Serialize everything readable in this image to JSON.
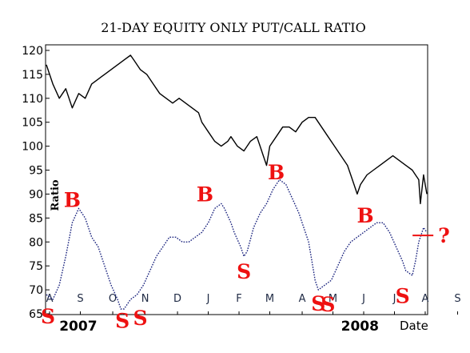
{
  "chart_data": {
    "type": "line",
    "title": "21-DAY EQUITY ONLY PUT/CALL RATIO",
    "ylabel": "Ratio",
    "xlabel": "Date",
    "ylim": [
      65,
      121
    ],
    "xlim": [
      0,
      235
    ],
    "yticks": [
      "65",
      "70",
      "75",
      "80",
      "85",
      "90",
      "95",
      "100",
      "105",
      "110",
      "115",
      "120"
    ],
    "ytick_values": [
      65,
      70,
      75,
      80,
      85,
      90,
      95,
      100,
      105,
      110,
      115,
      120
    ],
    "month_labels": [
      {
        "label": "A",
        "t": 2
      },
      {
        "label": "S",
        "t": 21
      },
      {
        "label": "O",
        "t": 41
      },
      {
        "label": "N",
        "t": 61
      },
      {
        "label": "D",
        "t": 81
      },
      {
        "label": "J",
        "t": 100
      },
      {
        "label": "F",
        "t": 119
      },
      {
        "label": "M",
        "t": 138
      },
      {
        "label": "A",
        "t": 158
      },
      {
        "label": "M",
        "t": 177
      },
      {
        "label": "J",
        "t": 196
      },
      {
        "label": "J",
        "t": 215
      },
      {
        "label": "A",
        "t": 234
      },
      {
        "label": "S",
        "t": 254
      }
    ],
    "year_labels": [
      {
        "label": "2007",
        "t": 8
      },
      {
        "label": "2008",
        "t": 182
      }
    ],
    "series": [
      {
        "color": "#000000",
        "style": "solid",
        "points": [
          [
            0,
            117
          ],
          [
            4,
            113
          ],
          [
            8,
            110
          ],
          [
            12,
            112
          ],
          [
            16,
            108
          ],
          [
            20,
            111
          ],
          [
            24,
            110
          ],
          [
            28,
            113
          ],
          [
            32,
            114
          ],
          [
            36,
            115
          ],
          [
            40,
            116
          ],
          [
            44,
            117
          ],
          [
            48,
            118
          ],
          [
            52,
            119
          ],
          [
            54,
            118
          ],
          [
            58,
            116
          ],
          [
            62,
            115
          ],
          [
            66,
            113
          ],
          [
            70,
            111
          ],
          [
            74,
            110
          ],
          [
            78,
            109
          ],
          [
            82,
            110
          ],
          [
            86,
            109
          ],
          [
            90,
            108
          ],
          [
            94,
            107
          ],
          [
            96,
            105
          ],
          [
            100,
            103
          ],
          [
            104,
            101
          ],
          [
            108,
            100
          ],
          [
            112,
            101
          ],
          [
            114,
            102
          ],
          [
            118,
            100
          ],
          [
            122,
            99
          ],
          [
            126,
            101
          ],
          [
            130,
            102
          ],
          [
            132,
            100
          ],
          [
            134,
            98
          ],
          [
            136,
            96
          ],
          [
            138,
            100
          ],
          [
            142,
            102
          ],
          [
            146,
            104
          ],
          [
            150,
            104
          ],
          [
            154,
            103
          ],
          [
            158,
            105
          ],
          [
            162,
            106
          ],
          [
            166,
            106
          ],
          [
            170,
            104
          ],
          [
            174,
            102
          ],
          [
            178,
            100
          ],
          [
            182,
            98
          ],
          [
            186,
            96
          ],
          [
            188,
            94
          ],
          [
            190,
            92
          ],
          [
            192,
            90
          ],
          [
            194,
            92
          ],
          [
            198,
            94
          ],
          [
            202,
            95
          ],
          [
            206,
            96
          ],
          [
            210,
            97
          ],
          [
            214,
            98
          ],
          [
            218,
            97
          ],
          [
            222,
            96
          ],
          [
            226,
            95
          ],
          [
            228,
            94
          ],
          [
            230,
            93
          ],
          [
            231,
            88
          ],
          [
            232,
            91
          ],
          [
            233,
            94
          ],
          [
            235,
            90
          ]
        ]
      },
      {
        "color": "#1a237e",
        "style": "dotted",
        "points": [
          [
            0,
            69
          ],
          [
            4,
            68
          ],
          [
            8,
            71
          ],
          [
            12,
            77
          ],
          [
            16,
            84
          ],
          [
            20,
            87
          ],
          [
            24,
            85
          ],
          [
            28,
            81
          ],
          [
            32,
            79
          ],
          [
            36,
            75
          ],
          [
            40,
            71
          ],
          [
            44,
            68
          ],
          [
            46,
            66
          ],
          [
            48,
            66
          ],
          [
            50,
            67
          ],
          [
            52,
            68
          ],
          [
            56,
            69
          ],
          [
            60,
            71
          ],
          [
            64,
            74
          ],
          [
            68,
            77
          ],
          [
            72,
            79
          ],
          [
            76,
            81
          ],
          [
            80,
            81
          ],
          [
            84,
            80
          ],
          [
            88,
            80
          ],
          [
            92,
            81
          ],
          [
            96,
            82
          ],
          [
            100,
            84
          ],
          [
            104,
            87
          ],
          [
            108,
            88
          ],
          [
            110,
            87
          ],
          [
            114,
            84
          ],
          [
            116,
            82
          ],
          [
            120,
            79
          ],
          [
            122,
            77
          ],
          [
            124,
            78
          ],
          [
            128,
            83
          ],
          [
            132,
            86
          ],
          [
            136,
            88
          ],
          [
            140,
            91
          ],
          [
            144,
            93
          ],
          [
            148,
            92
          ],
          [
            152,
            89
          ],
          [
            156,
            86
          ],
          [
            158,
            84
          ],
          [
            162,
            80
          ],
          [
            164,
            76
          ],
          [
            166,
            72
          ],
          [
            168,
            70
          ],
          [
            172,
            71
          ],
          [
            176,
            72
          ],
          [
            180,
            75
          ],
          [
            184,
            78
          ],
          [
            188,
            80
          ],
          [
            192,
            81
          ],
          [
            196,
            82
          ],
          [
            200,
            83
          ],
          [
            204,
            84
          ],
          [
            208,
            84
          ],
          [
            212,
            82
          ],
          [
            216,
            79
          ],
          [
            220,
            76
          ],
          [
            222,
            74
          ],
          [
            226,
            73
          ],
          [
            228,
            76
          ],
          [
            230,
            80
          ],
          [
            233,
            83
          ],
          [
            235,
            82
          ]
        ]
      }
    ],
    "signals": [
      {
        "label": "S",
        "t": 1,
        "y": 64.5
      },
      {
        "label": "S",
        "t": 47,
        "y": 63.6
      },
      {
        "label": "S",
        "t": 58,
        "y": 64.2
      },
      {
        "label": "B",
        "t": 16,
        "y": 88.8
      },
      {
        "label": "B",
        "t": 98,
        "y": 90.0
      },
      {
        "label": "S",
        "t": 122,
        "y": 73.9
      },
      {
        "label": "B",
        "t": 142,
        "y": 94.6
      },
      {
        "label": "S",
        "t": 168,
        "y": 67.2
      },
      {
        "label": "S",
        "t": 174,
        "y": 67.0
      },
      {
        "label": "B",
        "t": 197,
        "y": 85.6
      },
      {
        "label": "S",
        "t": 220,
        "y": 68.8
      }
    ],
    "annotation": {
      "label": "?",
      "t": 241,
      "y": 81.2
    },
    "signal_color": "#ee1111"
  }
}
